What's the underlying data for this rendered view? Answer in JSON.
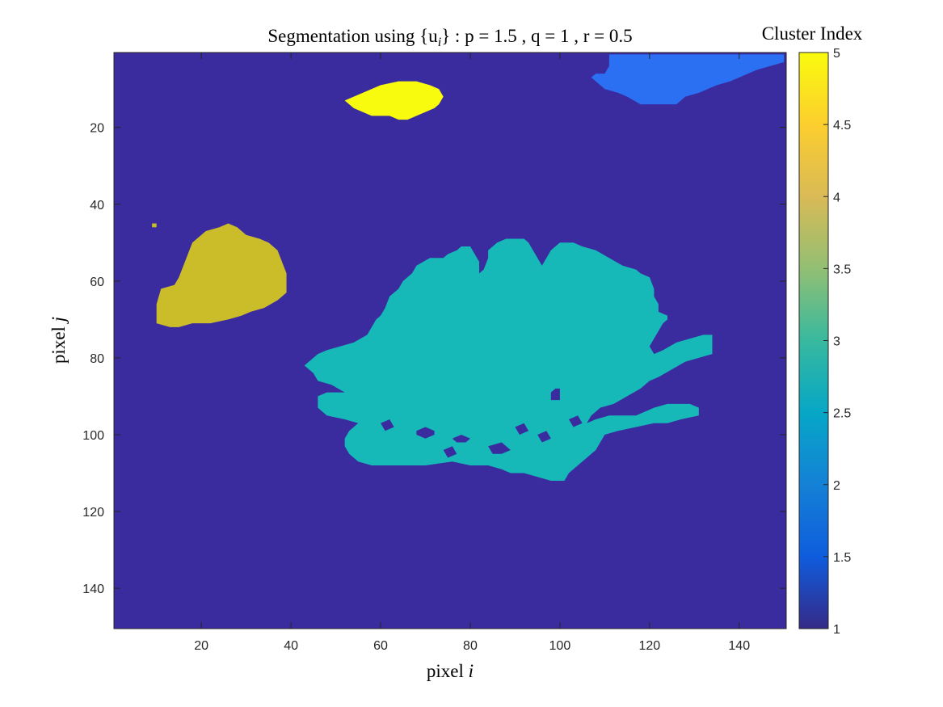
{
  "chart_data": {
    "type": "heatmap",
    "title": "Segmentation using {u_i} : p = 1.5 , q = 1 , r = 0.5",
    "title_parts": {
      "prefix": "Segmentation using {u",
      "subscript": "i",
      "suffix": "} : p = 1.5 , q = 1 , r = 0.5"
    },
    "xlabel": "pixel i",
    "xlabel_parts": {
      "word": "pixel",
      "var": "i"
    },
    "ylabel": "pixel j",
    "ylabel_parts": {
      "word": "pixel",
      "var": "j"
    },
    "xlim": [
      0.5,
      150.5
    ],
    "ylim": [
      0.5,
      150.5
    ],
    "y_reversed": true,
    "xticks": [
      20,
      40,
      60,
      80,
      100,
      120,
      140
    ],
    "yticks": [
      20,
      40,
      60,
      80,
      100,
      120,
      140
    ],
    "grid": false,
    "colorbar": {
      "title": "Cluster Index",
      "range": [
        1,
        5
      ],
      "ticks": [
        "1",
        "1.5",
        "2",
        "2.5",
        "3",
        "3.5",
        "4",
        "4.5",
        "5"
      ],
      "colormap": "parula",
      "stops": [
        "#352a87",
        "#0f5cdd",
        "#1481d6",
        "#06a7c6",
        "#38b99e",
        "#92bf73",
        "#d9ba56",
        "#fcce2e",
        "#f9fb0e"
      ]
    },
    "background_cluster": 1,
    "regions": [
      {
        "cluster": 5,
        "color": "#f9fb0e",
        "polygon": [
          [
            52,
            13
          ],
          [
            56,
            11
          ],
          [
            60,
            9
          ],
          [
            64,
            8
          ],
          [
            68,
            8
          ],
          [
            71,
            9
          ],
          [
            73,
            10
          ],
          [
            74,
            12
          ],
          [
            73,
            14
          ],
          [
            72,
            15
          ],
          [
            70,
            16
          ],
          [
            68,
            17
          ],
          [
            66,
            18
          ],
          [
            64,
            18
          ],
          [
            62,
            17
          ],
          [
            58,
            17
          ],
          [
            56,
            16
          ],
          [
            54,
            15
          ],
          [
            53,
            14
          ]
        ]
      },
      {
        "cluster": 2,
        "color": "#2b6ff2",
        "polygon": [
          [
            111,
            1
          ],
          [
            150,
            1
          ],
          [
            150,
            3
          ],
          [
            147,
            4
          ],
          [
            144,
            5
          ],
          [
            142,
            6
          ],
          [
            140,
            7
          ],
          [
            138,
            8
          ],
          [
            135,
            9
          ],
          [
            133,
            10
          ],
          [
            131,
            11
          ],
          [
            128,
            12
          ],
          [
            126,
            14
          ],
          [
            118,
            14
          ],
          [
            115,
            12
          ],
          [
            113,
            11
          ],
          [
            110,
            10
          ],
          [
            108,
            8
          ],
          [
            107,
            7
          ],
          [
            108,
            6
          ],
          [
            110,
            6
          ],
          [
            111,
            4
          ]
        ]
      },
      {
        "cluster": 4,
        "color": "#cbbd2a",
        "polygon": [
          [
            9,
            45
          ],
          [
            10,
            45
          ],
          [
            10,
            46
          ],
          [
            9,
            46
          ]
        ]
      },
      {
        "cluster": 4,
        "color": "#cbbd2a",
        "polygon": [
          [
            17,
            53
          ],
          [
            18,
            50
          ],
          [
            21,
            47
          ],
          [
            24,
            46
          ],
          [
            26,
            45
          ],
          [
            28,
            46
          ],
          [
            30,
            48
          ],
          [
            33,
            49
          ],
          [
            35,
            50
          ],
          [
            37,
            52
          ],
          [
            38,
            55
          ],
          [
            39,
            58
          ],
          [
            39,
            63
          ],
          [
            37,
            65
          ],
          [
            34,
            67
          ],
          [
            31,
            68
          ],
          [
            29,
            69
          ],
          [
            26,
            70
          ],
          [
            22,
            71
          ],
          [
            18,
            71
          ],
          [
            15,
            72
          ],
          [
            13,
            72
          ],
          [
            10,
            71
          ],
          [
            10,
            66
          ],
          [
            11,
            62
          ],
          [
            14,
            61
          ],
          [
            15,
            59
          ]
        ]
      },
      {
        "cluster": 3,
        "color": "#17b8b8",
        "polygon": [
          [
            44,
            81
          ],
          [
            46,
            79
          ],
          [
            48,
            78
          ],
          [
            51,
            77
          ],
          [
            54,
            76
          ],
          [
            57,
            74
          ],
          [
            58,
            72
          ],
          [
            59,
            70
          ],
          [
            60,
            69
          ],
          [
            61,
            67
          ],
          [
            62,
            64
          ],
          [
            64,
            62
          ],
          [
            65,
            60
          ],
          [
            67,
            58
          ],
          [
            68,
            56
          ],
          [
            71,
            54
          ],
          [
            74,
            54
          ],
          [
            75,
            53
          ],
          [
            77,
            52
          ],
          [
            78,
            51
          ],
          [
            80,
            51
          ],
          [
            81,
            53
          ],
          [
            82,
            55
          ],
          [
            82,
            58
          ],
          [
            83,
            57
          ],
          [
            84,
            54
          ],
          [
            84,
            52
          ],
          [
            86,
            50
          ],
          [
            88,
            49
          ],
          [
            92,
            49
          ],
          [
            93,
            50
          ],
          [
            94,
            52
          ],
          [
            95,
            54
          ],
          [
            96,
            56
          ],
          [
            97,
            54
          ],
          [
            98,
            52
          ],
          [
            100,
            50
          ],
          [
            103,
            50
          ],
          [
            105,
            51
          ],
          [
            108,
            52
          ],
          [
            111,
            54
          ],
          [
            114,
            56
          ],
          [
            117,
            57
          ],
          [
            118,
            58
          ],
          [
            120,
            59
          ],
          [
            121,
            62
          ],
          [
            121,
            64
          ],
          [
            122,
            66
          ],
          [
            122,
            68
          ],
          [
            124,
            69
          ],
          [
            124,
            70
          ],
          [
            123,
            71
          ],
          [
            122,
            73
          ],
          [
            121,
            75
          ],
          [
            120,
            77
          ],
          [
            121,
            79
          ],
          [
            123,
            78
          ],
          [
            126,
            76
          ],
          [
            129,
            75
          ],
          [
            132,
            74
          ],
          [
            134,
            74
          ],
          [
            134,
            79
          ],
          [
            131,
            80
          ],
          [
            128,
            81
          ],
          [
            125,
            83
          ],
          [
            122,
            85
          ],
          [
            120,
            86
          ],
          [
            118,
            88
          ],
          [
            115,
            90
          ],
          [
            112,
            92
          ],
          [
            109,
            93
          ],
          [
            107,
            95
          ],
          [
            106,
            97
          ],
          [
            108,
            96
          ],
          [
            111,
            95
          ],
          [
            114,
            95
          ],
          [
            117,
            95
          ],
          [
            119,
            94
          ],
          [
            121,
            93
          ],
          [
            124,
            92
          ],
          [
            129,
            92
          ],
          [
            131,
            93
          ],
          [
            131,
            95
          ],
          [
            127,
            96
          ],
          [
            124,
            97
          ],
          [
            121,
            97
          ],
          [
            117,
            98
          ],
          [
            113,
            99
          ],
          [
            110,
            100
          ],
          [
            109,
            102
          ],
          [
            108,
            104
          ],
          [
            106,
            106
          ],
          [
            104,
            108
          ],
          [
            102,
            110
          ],
          [
            101,
            112
          ],
          [
            98,
            112
          ],
          [
            95,
            111
          ],
          [
            92,
            110
          ],
          [
            89,
            110
          ],
          [
            87,
            109
          ],
          [
            84,
            108
          ],
          [
            80,
            108
          ],
          [
            76,
            107
          ],
          [
            70,
            108
          ],
          [
            64,
            108
          ],
          [
            58,
            108
          ],
          [
            55,
            107
          ],
          [
            53,
            105
          ],
          [
            52,
            103
          ],
          [
            52,
            101
          ],
          [
            53,
            99
          ],
          [
            55,
            97
          ],
          [
            52,
            96
          ],
          [
            48,
            95
          ],
          [
            46,
            93
          ],
          [
            46,
            90
          ],
          [
            48,
            89
          ],
          [
            52,
            89
          ],
          [
            49,
            87
          ],
          [
            46,
            86
          ],
          [
            45,
            84
          ],
          [
            43,
            82
          ]
        ]
      }
    ],
    "holes": [
      [
        [
          98,
          89
        ],
        [
          99,
          88
        ],
        [
          100,
          88
        ],
        [
          100,
          91
        ],
        [
          98,
          91
        ]
      ],
      [
        [
          68,
          99
        ],
        [
          70,
          98
        ],
        [
          72,
          99
        ],
        [
          72,
          100
        ],
        [
          70,
          101
        ],
        [
          68,
          100
        ]
      ],
      [
        [
          76,
          101
        ],
        [
          78,
          100
        ],
        [
          80,
          101
        ],
        [
          79,
          102
        ],
        [
          77,
          102
        ]
      ],
      [
        [
          84,
          103
        ],
        [
          87,
          102
        ],
        [
          89,
          104
        ],
        [
          87,
          105
        ],
        [
          85,
          105
        ]
      ],
      [
        [
          95,
          100
        ],
        [
          97,
          99
        ],
        [
          98,
          101
        ],
        [
          96,
          102
        ]
      ],
      [
        [
          90,
          98
        ],
        [
          92,
          97
        ],
        [
          93,
          99
        ],
        [
          91,
          100
        ]
      ],
      [
        [
          60,
          97
        ],
        [
          62,
          96
        ],
        [
          63,
          98
        ],
        [
          61,
          99
        ]
      ],
      [
        [
          74,
          104
        ],
        [
          76,
          103
        ],
        [
          77,
          105
        ],
        [
          75,
          106
        ]
      ],
      [
        [
          102,
          96
        ],
        [
          104,
          95
        ],
        [
          105,
          97
        ],
        [
          103,
          98
        ]
      ]
    ]
  }
}
